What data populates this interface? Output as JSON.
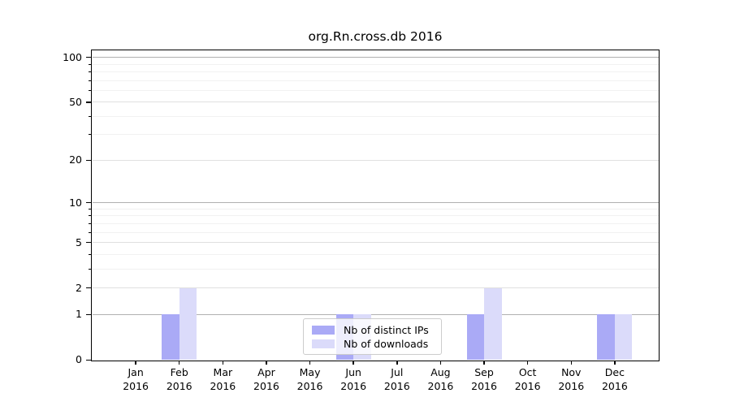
{
  "chart_data": {
    "type": "bar",
    "title": "org.Rn.cross.db 2016",
    "year": "2016",
    "categories": [
      "Jan",
      "Feb",
      "Mar",
      "Apr",
      "May",
      "Jun",
      "Jul",
      "Aug",
      "Sep",
      "Oct",
      "Nov",
      "Dec"
    ],
    "series": [
      {
        "name": "Nb of distinct IPs",
        "color": "#aaaaf6",
        "values": [
          0,
          1,
          0,
          0,
          0,
          1,
          0,
          0,
          1,
          0,
          0,
          1
        ]
      },
      {
        "name": "Nb of downloads",
        "color": "#dbdbfa",
        "values": [
          0,
          2,
          0,
          0,
          0,
          1,
          0,
          0,
          2,
          0,
          0,
          1
        ]
      }
    ],
    "yscale": "log1p",
    "ylim": [
      0,
      111
    ],
    "yticks": [
      0,
      1,
      2,
      5,
      10,
      20,
      50,
      100
    ],
    "yticks_minor": [
      3,
      4,
      6,
      7,
      8,
      9,
      30,
      40,
      60,
      70,
      80,
      90
    ],
    "xlabel": "",
    "ylabel": "",
    "grid": "horizontal",
    "legend_position": "lower center",
    "colors": {
      "grid_major": "#b0b0b0",
      "grid_mid": "#e0e0e0",
      "grid_minor": "#f1f1f1",
      "spine": "#000000"
    }
  }
}
